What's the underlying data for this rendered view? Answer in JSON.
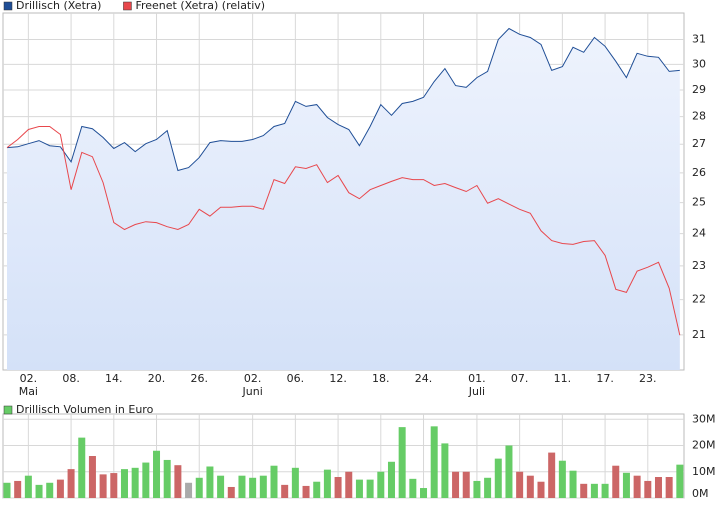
{
  "chart_data": [
    {
      "type": "line",
      "log_scale": true,
      "grid": true,
      "legend": "top-left",
      "categories": [
        null,
        null,
        "02.",
        null,
        null,
        null,
        "08.",
        null,
        null,
        null,
        "14.",
        null,
        null,
        null,
        "20.",
        null,
        null,
        null,
        "26.",
        null,
        null,
        null,
        null,
        "02.",
        null,
        null,
        null,
        "06.",
        null,
        null,
        null,
        "12.",
        null,
        null,
        null,
        "18.",
        null,
        null,
        null,
        "24.",
        null,
        null,
        null,
        null,
        "01.",
        null,
        null,
        null,
        "07.",
        null,
        null,
        null,
        "11.",
        null,
        null,
        null,
        "17.",
        null,
        null,
        null,
        "23.",
        null,
        null,
        null
      ],
      "month_labels": [
        null,
        null,
        "Mai",
        null,
        null,
        null,
        null,
        null,
        null,
        null,
        null,
        null,
        null,
        null,
        null,
        null,
        null,
        null,
        null,
        null,
        null,
        null,
        null,
        "Juni",
        null,
        null,
        null,
        null,
        null,
        null,
        null,
        null,
        null,
        null,
        null,
        null,
        null,
        null,
        null,
        null,
        null,
        null,
        null,
        null,
        "Juli",
        null,
        null,
        null,
        null,
        null,
        null,
        null,
        null,
        null,
        null,
        null,
        null,
        null,
        null,
        null,
        null,
        null,
        null,
        null
      ],
      "series": [
        {
          "name": "Drillisch (Xetra)",
          "color": "#1f4e96",
          "fill": "#dfe8fa",
          "values": [
            26.88,
            26.91,
            27.02,
            27.13,
            26.95,
            26.91,
            26.38,
            27.64,
            27.56,
            27.24,
            26.85,
            27.06,
            26.74,
            27.02,
            27.17,
            27.49,
            26.08,
            26.18,
            26.53,
            27.06,
            27.13,
            27.1,
            27.1,
            27.17,
            27.31,
            27.64,
            27.75,
            28.57,
            28.38,
            28.45,
            27.97,
            27.71,
            27.53,
            26.95,
            27.64,
            28.45,
            28.05,
            28.49,
            28.57,
            28.72,
            29.33,
            29.83,
            29.17,
            29.1,
            29.48,
            29.72,
            31.0,
            31.45,
            31.21,
            31.08,
            30.8,
            29.76,
            29.91,
            30.68,
            30.48,
            31.08,
            30.72,
            30.12,
            29.48,
            30.44,
            30.32,
            30.28,
            29.72,
            29.76
          ]
        },
        {
          "name": "Freenet (Xetra) (relativ)",
          "color": "#e8474c",
          "values": [
            26.88,
            27.17,
            27.53,
            27.64,
            27.64,
            27.35,
            25.43,
            26.71,
            26.56,
            25.67,
            24.35,
            24.13,
            24.29,
            24.38,
            24.35,
            24.22,
            24.13,
            24.29,
            24.78,
            24.56,
            24.85,
            24.85,
            24.88,
            24.88,
            24.78,
            25.77,
            25.64,
            26.21,
            26.15,
            26.28,
            25.67,
            25.91,
            25.33,
            25.13,
            25.43,
            25.57,
            25.71,
            25.84,
            25.77,
            25.77,
            25.57,
            25.64,
            25.5,
            25.37,
            25.57,
            24.98,
            25.13,
            24.95,
            24.78,
            24.65,
            24.09,
            23.78,
            23.69,
            23.66,
            23.75,
            23.78,
            23.32,
            22.3,
            22.21,
            22.84,
            22.96,
            23.11,
            22.33,
            20.99
          ]
        }
      ],
      "ylim": [
        20.05,
        32.1
      ],
      "yticks": [
        21,
        22,
        23,
        24,
        25,
        26,
        27,
        28,
        29,
        30,
        31
      ]
    },
    {
      "type": "bar",
      "grid": true,
      "legend": "top-left",
      "series": [
        {
          "name": "Drillisch Volumen in Euro",
          "color": "#66cc66",
          "colors": [
            "#66cc66",
            "#cc6666",
            "#66cc66",
            "#66cc66",
            "#66cc66",
            "#cc6666",
            "#cc6666",
            "#66cc66",
            "#cc6666",
            "#cc6666",
            "#cc6666",
            "#66cc66",
            "#66cc66",
            "#66cc66",
            "#66cc66",
            "#66cc66",
            "#cc6666",
            "#aaaaaa",
            "#66cc66",
            "#66cc66",
            "#66cc66",
            "#cc6666",
            "#66cc66",
            "#66cc66",
            "#66cc66",
            "#66cc66",
            "#cc6666",
            "#66cc66",
            "#cc6666",
            "#66cc66",
            "#66cc66",
            "#cc6666",
            "#cc6666",
            "#66cc66",
            "#66cc66",
            "#66cc66",
            "#66cc66",
            "#66cc66",
            "#66cc66",
            "#66cc66",
            "#66cc66",
            "#66cc66",
            "#cc6666",
            "#cc6666",
            "#66cc66",
            "#66cc66",
            "#66cc66",
            "#66cc66",
            "#cc6666",
            "#cc6666",
            "#cc6666",
            "#cc6666",
            "#66cc66",
            "#66cc66",
            "#cc6666",
            "#66cc66",
            "#66cc66",
            "#cc6666",
            "#66cc66",
            "#cc6666",
            "#cc6666",
            "#cc6666",
            "#cc6666",
            "#66cc66"
          ],
          "values": [
            5800000,
            6500000,
            8500000,
            5000000,
            5800000,
            7000000,
            11000000,
            23000000,
            16000000,
            9000000,
            9500000,
            11000000,
            11500000,
            13500000,
            18000000,
            14500000,
            12500000,
            5800000,
            7700000,
            12000000,
            8500000,
            4200000,
            8500000,
            7700000,
            8500000,
            12300000,
            5000000,
            11500000,
            4600000,
            6200000,
            10800000,
            8000000,
            10000000,
            7000000,
            7000000,
            10000000,
            13800000,
            27000000,
            7300000,
            3800000,
            27300000,
            20800000,
            10000000,
            10000000,
            6500000,
            7700000,
            15000000,
            20000000,
            10000000,
            8500000,
            6200000,
            17300000,
            14200000,
            10400000,
            5400000,
            5400000,
            5400000,
            12300000,
            9600000,
            8500000,
            6500000,
            8000000,
            8000000,
            12700000
          ]
        }
      ],
      "ylim": [
        0,
        32000000
      ],
      "yticks": [
        {
          "value": 0,
          "label": "0M"
        },
        {
          "value": 10000000,
          "label": "10M"
        },
        {
          "value": 20000000,
          "label": "20M"
        },
        {
          "value": 30000000,
          "label": "30M"
        }
      ]
    }
  ]
}
